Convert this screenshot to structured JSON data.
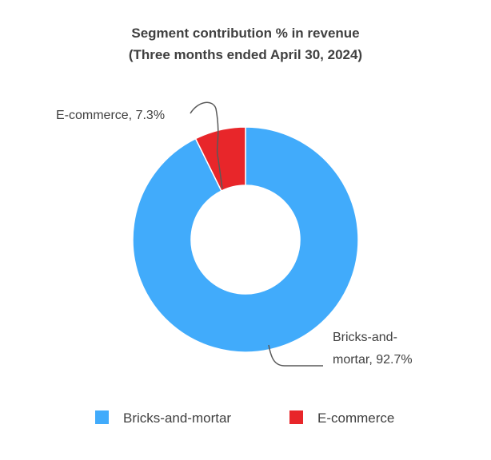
{
  "chart_data": {
    "type": "pie",
    "variant": "donut",
    "title": [
      "Segment contribution % in revenue",
      "(Three months ended April 30, 2024)"
    ],
    "series": [
      {
        "name": "Bricks-and-mortar",
        "value": 92.7,
        "color": "#41ABFB",
        "data_label": [
          "Bricks-and-",
          "mortar, 92.7%"
        ]
      },
      {
        "name": "E-commerce",
        "value": 7.3,
        "color": "#E8262A",
        "data_label": [
          "E-commerce, 7.3%"
        ]
      }
    ],
    "legend": {
      "position": "bottom",
      "entries": [
        "Bricks-and-mortar",
        "E-commerce"
      ]
    },
    "unit": "%"
  }
}
